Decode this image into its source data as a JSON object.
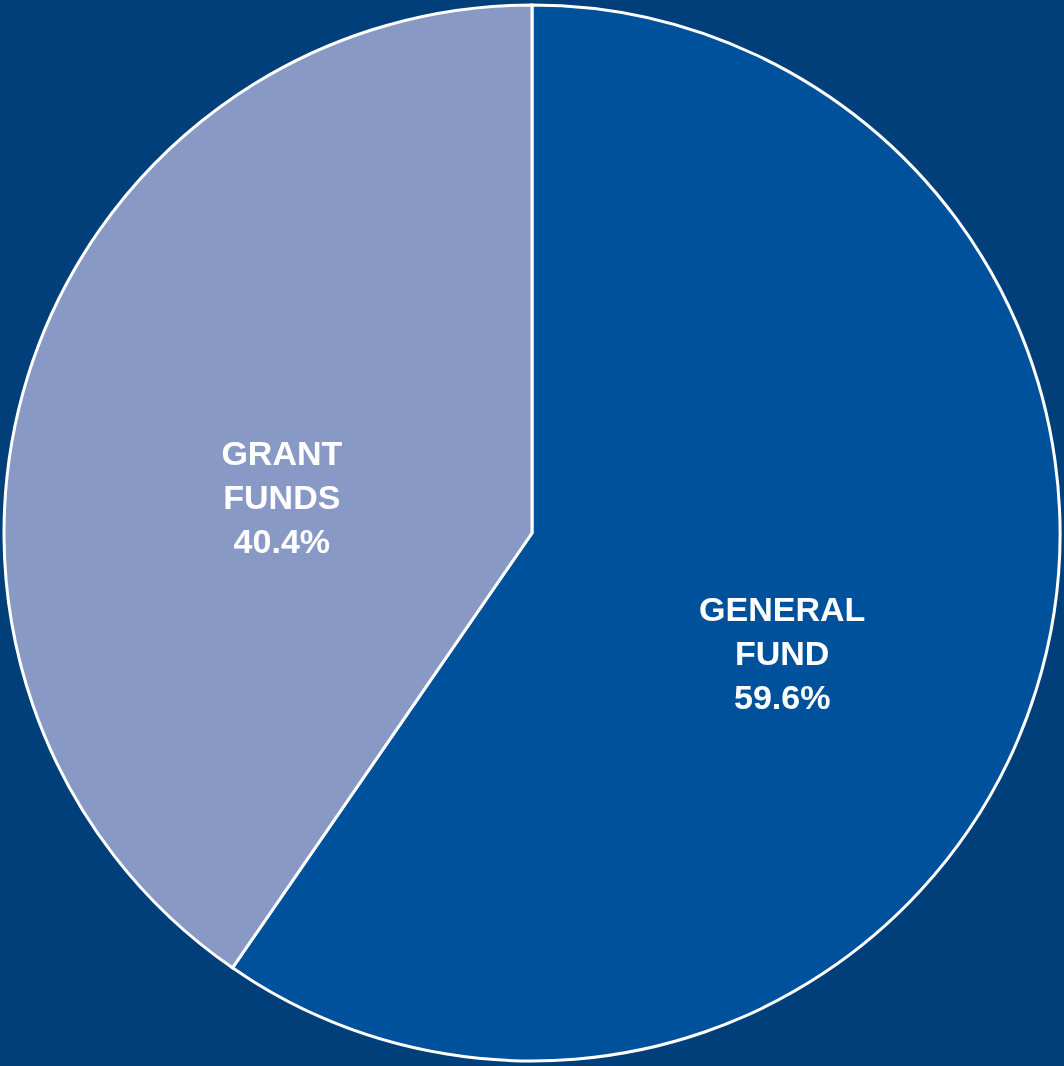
{
  "chart_data": {
    "type": "pie",
    "categories": [
      "GENERAL FUND",
      "GRANT FUNDS"
    ],
    "values": [
      59.6,
      40.4
    ],
    "value_labels": [
      "59.6%",
      "40.4%"
    ],
    "colors": [
      "#00519b",
      "#8799c4"
    ]
  }
}
